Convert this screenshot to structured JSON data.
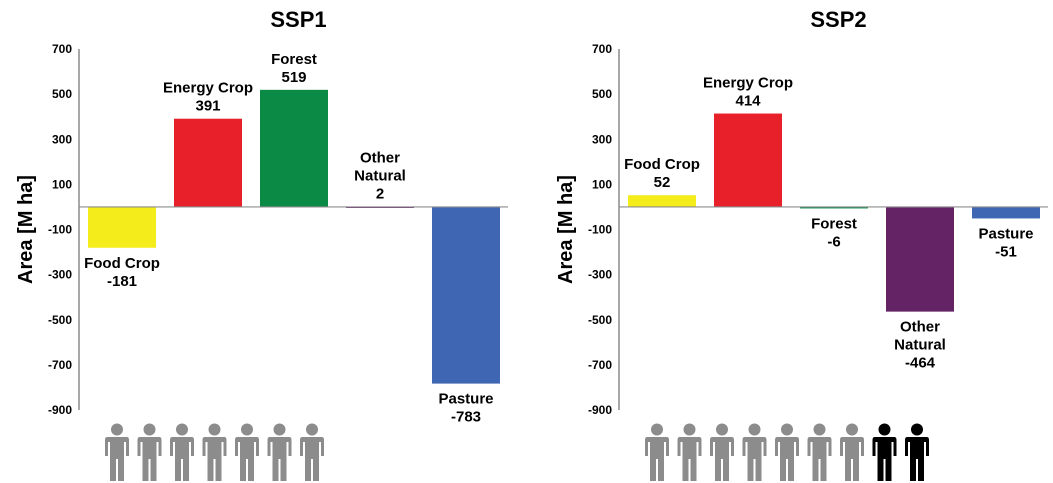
{
  "chart_data": [
    {
      "type": "bar",
      "title": "SSP1",
      "ylabel": "Area [M ha]",
      "xlabel": "",
      "ylim": [
        -900,
        700
      ],
      "yticks": [
        700,
        500,
        300,
        100,
        -100,
        -300,
        -500,
        -700,
        -900
      ],
      "grid": false,
      "categories": [
        "Food Crop",
        "Energy Crop",
        "Forest",
        "Other Natural",
        "Pasture"
      ],
      "values": [
        -181,
        391,
        519,
        2,
        -783
      ],
      "colors": [
        "#f5ec1c",
        "#e8202a",
        "#0a8a44",
        "#6a2a6e",
        "#3f66b3"
      ],
      "data_labels": [
        [
          "Food Crop",
          "-181"
        ],
        [
          "Energy Crop",
          "391"
        ],
        [
          "Forest",
          "519"
        ],
        [
          "Other",
          "Natural",
          "2"
        ],
        [
          "Pasture",
          "-783"
        ]
      ],
      "people": {
        "grey": 7,
        "black": 0
      }
    },
    {
      "type": "bar",
      "title": "SSP2",
      "ylabel": "Area [M ha]",
      "xlabel": "",
      "ylim": [
        -900,
        700
      ],
      "yticks": [
        700,
        500,
        300,
        100,
        -100,
        -300,
        -500,
        -700,
        -900
      ],
      "grid": false,
      "categories": [
        "Food Crop",
        "Energy Crop",
        "Forest",
        "Other Natural",
        "Pasture"
      ],
      "values": [
        52,
        414,
        -6,
        -464,
        -51
      ],
      "colors": [
        "#f5ec1c",
        "#e8202a",
        "#0a8a44",
        "#642365",
        "#3f66b3"
      ],
      "data_labels": [
        [
          "Food Crop",
          "52"
        ],
        [
          "Energy Crop",
          "414"
        ],
        [
          "Forest",
          "-6"
        ],
        [
          "Other",
          "Natural",
          "-464"
        ],
        [
          "Pasture",
          "-51"
        ]
      ],
      "people": {
        "grey": 7,
        "black": 2
      }
    }
  ],
  "colors": {
    "axis": "#8c8c8c",
    "person_grey": "#8c8c8c",
    "person_black": "#000000"
  },
  "icons": {
    "person": "person-icon"
  }
}
